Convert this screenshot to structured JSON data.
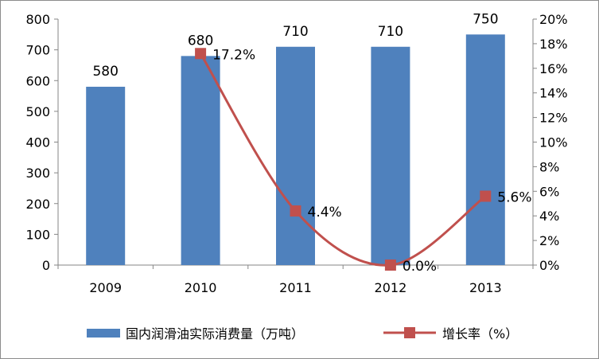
{
  "chart_data": {
    "type": "bar+line",
    "categories": [
      "2009",
      "2010",
      "2011",
      "2012",
      "2013"
    ],
    "series": [
      {
        "name": "国内润滑油实际消费量（万吨）",
        "type": "bar",
        "axis": "left",
        "color": "#4f81bd",
        "values": [
          580,
          680,
          710,
          710,
          750
        ],
        "data_labels": [
          "580",
          "680",
          "710",
          "710",
          "750"
        ]
      },
      {
        "name": "增长率（%）",
        "type": "line",
        "axis": "right",
        "color": "#c0504d",
        "smooth": true,
        "values": [
          null,
          17.2,
          4.4,
          0.0,
          5.6
        ],
        "data_labels": [
          "",
          "17.2%",
          "4.4%",
          "0.0%",
          "5.6%"
        ]
      }
    ],
    "y_left": {
      "min": 0,
      "max": 800,
      "ticks": [
        "0",
        "100",
        "200",
        "300",
        "400",
        "500",
        "600",
        "700",
        "800"
      ]
    },
    "y_right": {
      "min": 0,
      "max": 20,
      "ticks": [
        "0%",
        "2%",
        "4%",
        "6%",
        "8%",
        "10%",
        "12%",
        "14%",
        "16%",
        "18%",
        "20%"
      ]
    },
    "grid": false,
    "legend_position": "bottom"
  }
}
